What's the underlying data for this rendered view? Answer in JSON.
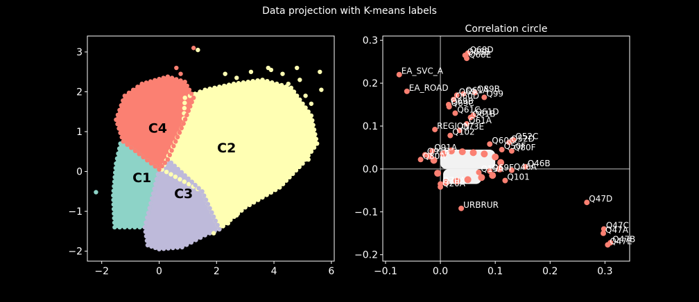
{
  "figure": {
    "title": "Data projection with K-means labels"
  },
  "chart_data": [
    {
      "type": "scatter",
      "title": "",
      "xlim": [
        -2.5,
        6.1
      ],
      "ylim": [
        -2.25,
        3.4
      ],
      "xticks": [
        -2,
        0,
        2,
        4,
        6
      ],
      "yticks": [
        -2,
        -1,
        0,
        1,
        2,
        3
      ],
      "xtick_labels": [
        "−2",
        "0",
        "2",
        "4",
        "6"
      ],
      "ytick_labels": [
        "−2",
        "−1",
        "0",
        "1",
        "2",
        "3"
      ],
      "grid": false,
      "clusters": [
        {
          "name": "C1",
          "color": "#8dd3c7",
          "label_pos": [
            -0.6,
            -0.15
          ],
          "region": [
            [
              -1.55,
              -1.4
            ],
            [
              -1.6,
              -0.6
            ],
            [
              -1.5,
              0.2
            ],
            [
              -1.35,
              0.7
            ],
            [
              -1.25,
              0.75
            ],
            [
              0.0,
              0.05
            ],
            [
              -0.5,
              -1.4
            ]
          ]
        },
        {
          "name": "C2",
          "color": "#ffffb3",
          "label_pos": [
            2.35,
            0.6
          ],
          "region": [
            [
              0.9,
              1.85
            ],
            [
              1.6,
              2.05
            ],
            [
              2.6,
              2.2
            ],
            [
              3.6,
              2.3
            ],
            [
              4.6,
              2.1
            ],
            [
              5.3,
              1.4
            ],
            [
              5.5,
              0.7
            ],
            [
              5.0,
              0.2
            ],
            [
              4.2,
              -0.4
            ],
            [
              3.0,
              -0.9
            ],
            [
              2.1,
              -1.45
            ],
            [
              1.5,
              -0.5
            ],
            [
              0.1,
              0.05
            ],
            [
              0.85,
              1.2
            ]
          ]
        },
        {
          "name": "C3",
          "color": "#bebada",
          "label_pos": [
            0.85,
            -0.55
          ],
          "region": [
            [
              0.0,
              0.05
            ],
            [
              -0.5,
              -1.4
            ],
            [
              -0.4,
              -1.85
            ],
            [
              0.0,
              -1.95
            ],
            [
              0.8,
              -1.9
            ],
            [
              1.6,
              -1.6
            ],
            [
              2.1,
              -1.45
            ],
            [
              1.5,
              -0.5
            ],
            [
              0.3,
              0.3
            ]
          ]
        },
        {
          "name": "C4",
          "color": "#fb8072",
          "label_pos": [
            -0.05,
            1.1
          ],
          "region": [
            [
              -1.25,
              0.75
            ],
            [
              -1.5,
              1.3
            ],
            [
              -1.2,
              1.9
            ],
            [
              -0.6,
              2.2
            ],
            [
              0.3,
              2.38
            ],
            [
              0.9,
              2.25
            ],
            [
              1.2,
              1.85
            ],
            [
              0.85,
              1.2
            ],
            [
              0.3,
              0.3
            ],
            [
              0.0,
              0.05
            ]
          ]
        }
      ],
      "outliers": [
        {
          "x": -2.2,
          "y": -0.52,
          "cluster": "C1"
        },
        {
          "x": 1.2,
          "y": 3.1,
          "cluster": "C4"
        },
        {
          "x": 1.35,
          "y": 3.05,
          "cluster": "C2"
        },
        {
          "x": 0.6,
          "y": 2.6,
          "cluster": "C4"
        },
        {
          "x": 0.75,
          "y": 2.45,
          "cluster": "C4"
        },
        {
          "x": 5.6,
          "y": 2.5,
          "cluster": "C2"
        },
        {
          "x": 5.65,
          "y": 2.05,
          "cluster": "C2"
        },
        {
          "x": 5.2,
          "y": 1.0,
          "cluster": "C2"
        },
        {
          "x": 4.8,
          "y": 2.6,
          "cluster": "C2"
        }
      ]
    },
    {
      "type": "scatter",
      "title": "Correlation circle",
      "xlim": [
        -0.105,
        0.345
      ],
      "ylim": [
        -0.215,
        0.31
      ],
      "xticks": [
        -0.1,
        0.0,
        0.1,
        0.2,
        0.3
      ],
      "yticks": [
        -0.2,
        -0.1,
        0.0,
        0.1,
        0.2,
        0.3
      ],
      "xtick_labels": [
        "−0.1",
        "0.0",
        "0.1",
        "0.2",
        "0.3"
      ],
      "ytick_labels": [
        "−0.2",
        "−0.1",
        "0.0",
        "0.1",
        "0.2",
        "0.3"
      ],
      "point_color": "#fb8072",
      "crosshair": true,
      "points": [
        {
          "label": "Q68D",
          "x": 0.05,
          "y": 0.27
        },
        {
          "label": "Q68B",
          "x": 0.045,
          "y": 0.265
        },
        {
          "label": "Q68E",
          "x": 0.048,
          "y": 0.258
        },
        {
          "label": "EA_SVC_A",
          "x": -0.075,
          "y": 0.22
        },
        {
          "label": "EA_ROAD",
          "x": -0.061,
          "y": 0.181
        },
        {
          "label": "Q89B",
          "x": 0.063,
          "y": 0.178
        },
        {
          "label": "Q61A",
          "x": 0.042,
          "y": 0.175
        },
        {
          "label": "Q69",
          "x": 0.03,
          "y": 0.172
        },
        {
          "label": "Q99",
          "x": 0.08,
          "y": 0.167
        },
        {
          "label": "Q60D",
          "x": 0.024,
          "y": 0.162
        },
        {
          "label": "Q69B",
          "x": 0.015,
          "y": 0.15
        },
        {
          "label": "Q69C",
          "x": 0.016,
          "y": 0.145
        },
        {
          "label": "Q61C",
          "x": 0.027,
          "y": 0.13
        },
        {
          "label": "Q61D",
          "x": 0.06,
          "y": 0.125
        },
        {
          "label": "Q61B",
          "x": 0.055,
          "y": 0.12
        },
        {
          "label": "Q61A",
          "x": 0.048,
          "y": 0.105
        },
        {
          "label": "REGION",
          "x": -0.01,
          "y": 0.092
        },
        {
          "label": "Q73E",
          "x": 0.035,
          "y": 0.09
        },
        {
          "label": "Q102",
          "x": 0.018,
          "y": 0.078
        },
        {
          "label": "Q52C",
          "x": 0.133,
          "y": 0.068
        },
        {
          "label": "Q52D",
          "x": 0.125,
          "y": 0.062
        },
        {
          "label": "Q60C",
          "x": 0.09,
          "y": 0.058
        },
        {
          "label": "Q50F",
          "x": 0.112,
          "y": 0.045
        },
        {
          "label": "Q80F",
          "x": 0.13,
          "y": 0.042
        },
        {
          "label": "Q91A",
          "x": -0.015,
          "y": 0.042
        },
        {
          "label": "Q91B",
          "x": -0.028,
          "y": 0.033
        },
        {
          "label": "Q80A",
          "x": -0.036,
          "y": 0.022
        },
        {
          "label": "Q46B",
          "x": 0.155,
          "y": 0.005
        },
        {
          "label": "Q46A",
          "x": 0.13,
          "y": -0.003
        },
        {
          "label": "Q69F",
          "x": 0.09,
          "y": -0.005
        },
        {
          "label": "Q15A",
          "x": 0.07,
          "y": -0.008
        },
        {
          "label": "Q101",
          "x": 0.118,
          "y": -0.027
        },
        {
          "label": "Q70A",
          "x": 0.0,
          "y": -0.035
        },
        {
          "label": "Q20A",
          "x": 0.0,
          "y": -0.042
        },
        {
          "label": "URBRUR",
          "x": 0.038,
          "y": -0.092
        },
        {
          "label": "Q47D",
          "x": 0.267,
          "y": -0.078
        },
        {
          "label": "Q47C",
          "x": 0.298,
          "y": -0.14
        },
        {
          "label": "Q47A",
          "x": 0.297,
          "y": -0.15
        },
        {
          "label": "Q47B",
          "x": 0.31,
          "y": -0.172
        },
        {
          "label": "Q47E",
          "x": 0.305,
          "y": -0.177
        }
      ]
    }
  ]
}
